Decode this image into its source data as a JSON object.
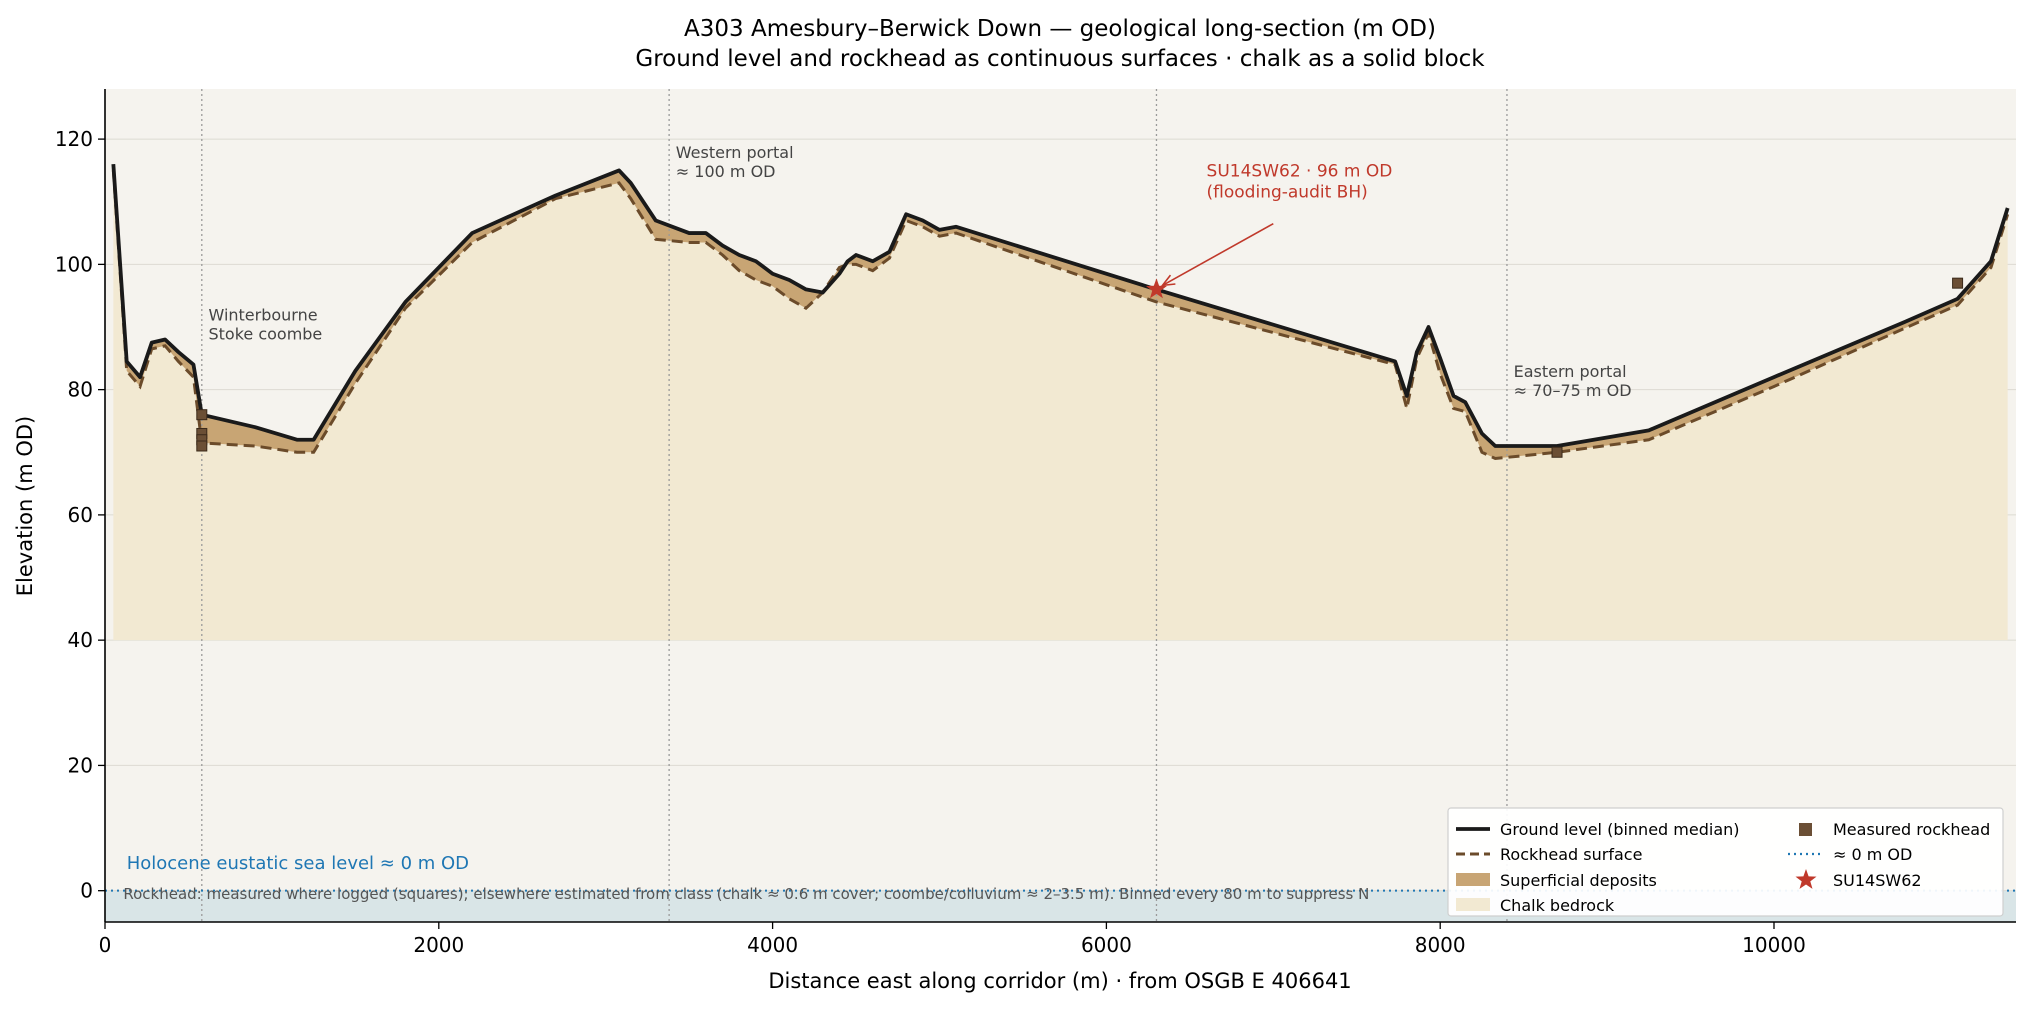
{
  "chart_data": {
    "type": "area",
    "title": "A303 Amesbury–Berwick Down — geological long-section (m OD)",
    "subtitle": "Ground level and rockhead as continuous surfaces · chalk as a solid block",
    "xlabel": "Distance east along corridor (m) · from OSGB E 406641",
    "ylabel": "Elevation (m OD)",
    "xlim": [
      0,
      11450
    ],
    "ylim": [
      -5,
      128
    ],
    "x_ticks": [
      0,
      2000,
      4000,
      6000,
      8000,
      10000
    ],
    "y_ticks": [
      0,
      20,
      40,
      60,
      80,
      100,
      120
    ],
    "grid": "horizontal",
    "legend_position": "lower-right",
    "colors": {
      "ground": "#1a1a1a",
      "rockhead": "#6b4b2a",
      "superficial": "#c8a574",
      "chalk": "#f2e9d2",
      "background": "#f5f3ee",
      "sea": "#1f77b4",
      "sea_band": "#d6e3e6",
      "star": "#c0392b",
      "measured": "#6b4f35",
      "portal_line": "#9a9a9a"
    },
    "series": [
      {
        "name": "Ground level (binned median)",
        "x": [
          50,
          130,
          210,
          280,
          360,
          440,
          530,
          580,
          900,
          1150,
          1250,
          1500,
          1800,
          2200,
          2700,
          3080,
          3150,
          3300,
          3500,
          3600,
          3700,
          3800,
          3900,
          4000,
          4100,
          4200,
          4300,
          4400,
          4450,
          4500,
          4600,
          4700,
          4800,
          4900,
          5000,
          5100,
          6300,
          7730,
          7800,
          7860,
          7930,
          8000,
          8080,
          8150,
          8250,
          8330,
          8700,
          9250,
          10000,
          10800,
          11100,
          11300,
          11400
        ],
        "y": [
          116,
          84.5,
          82,
          87.5,
          88,
          86,
          84,
          76,
          74,
          72,
          72,
          83,
          94,
          105,
          111,
          115,
          113,
          107,
          105,
          105,
          103,
          101.5,
          100.5,
          98.5,
          97.5,
          96,
          95.5,
          98.5,
          100.5,
          101.5,
          100.5,
          102,
          108,
          107,
          105.5,
          106,
          96,
          84.5,
          79,
          86,
          90,
          85,
          79,
          78,
          73,
          71,
          71,
          73.5,
          82,
          91,
          94.5,
          100.5,
          109
        ]
      },
      {
        "name": "Rockhead surface",
        "x": [
          50,
          130,
          210,
          280,
          360,
          440,
          530,
          580,
          900,
          1150,
          1250,
          1500,
          1800,
          2200,
          2700,
          3080,
          3150,
          3300,
          3500,
          3600,
          3700,
          3800,
          3900,
          4000,
          4100,
          4200,
          4300,
          4400,
          4450,
          4500,
          4600,
          4700,
          4800,
          4900,
          5000,
          5100,
          6300,
          7730,
          7800,
          7860,
          7930,
          8000,
          8080,
          8150,
          8250,
          8330,
          8700,
          9250,
          10000,
          10800,
          11100,
          11300,
          11400
        ],
        "y": [
          115,
          83,
          80.5,
          86.5,
          87,
          84.5,
          82,
          71.5,
          71,
          70,
          70,
          81,
          93,
          103.5,
          110.5,
          113,
          110.5,
          104,
          103.5,
          103.5,
          101.5,
          99,
          97.5,
          96.5,
          94.5,
          93,
          95.5,
          99.5,
          100,
          100,
          99,
          101,
          107,
          106,
          104.5,
          105,
          94,
          84,
          77,
          85,
          89,
          82.5,
          77,
          76.5,
          70,
          69,
          70,
          72,
          80.5,
          90,
          93.5,
          99.5,
          108
        ]
      },
      {
        "name": "Superficial deposits"
      },
      {
        "name": "Chalk bedrock",
        "base": 40
      },
      {
        "name": "≈ 0 m OD",
        "y": 0
      },
      {
        "name": "Measured rockhead",
        "points": [
          {
            "x": 580,
            "y": 76
          },
          {
            "x": 580,
            "y": 73
          },
          {
            "x": 580,
            "y": 72
          },
          {
            "x": 580,
            "y": 71
          },
          {
            "x": 8700,
            "y": 70
          },
          {
            "x": 11100,
            "y": 97
          }
        ]
      },
      {
        "name": "SU14SW62",
        "points": [
          {
            "x": 6300,
            "y": 96
          }
        ]
      }
    ],
    "portal_lines_x": [
      580,
      3380,
      6300,
      8400
    ],
    "annotations": {
      "winterbourne": {
        "lines": [
          "Winterbourne",
          "Stoke coombe"
        ],
        "x": 620,
        "y": 91
      },
      "western_portal": {
        "lines": [
          "Western portal",
          "≈ 100 m OD"
        ],
        "x": 3420,
        "y": 117
      },
      "su14sw62": {
        "lines": [
          "SU14SW62 · 96 m OD",
          "(flooding-audit BH)"
        ],
        "x": 6600,
        "y": 114,
        "target_x": 6300,
        "target_y": 96
      },
      "eastern_portal": {
        "lines": [
          "Eastern portal",
          "≈ 70–75 m OD"
        ],
        "x": 8440,
        "y": 82
      },
      "sea_level_label": "Holocene eustatic sea level ≈ 0 m OD",
      "footnote": "Rockhead: measured where logged (squares); elsewhere estimated from class (chalk ≈ 0.6 m cover; coombe/colluvium ≈ 2–3.5 m). Binned every 80 m to suppress N"
    }
  }
}
